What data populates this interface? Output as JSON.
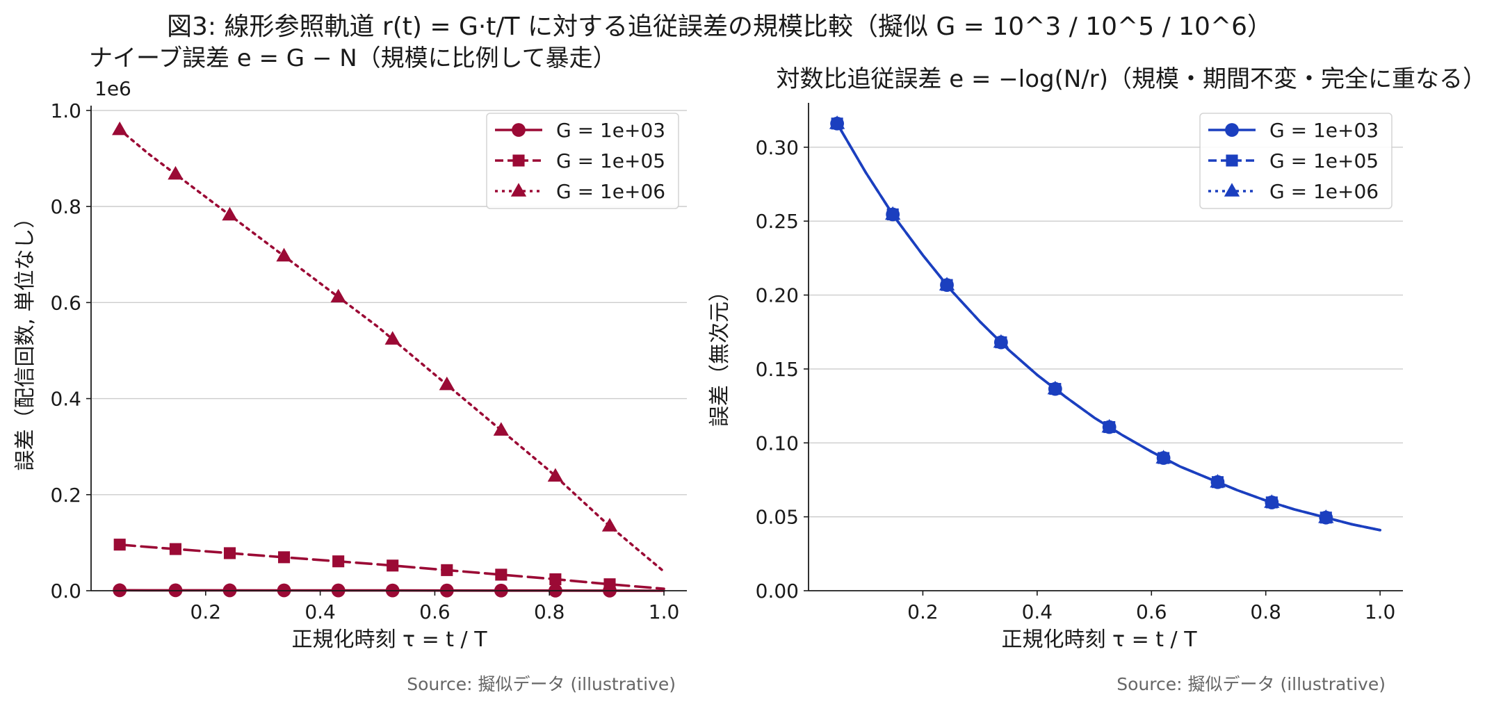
{
  "figure": {
    "suptitle": "図3: 線形参照軌道 r(t) = G·t/T に対する追従誤差の規模比較（擬似 G = 10^3 / 10^5 / 10^6）"
  },
  "chart_data": [
    {
      "type": "line",
      "title": "ナイーブ誤差 e = G − N（規模に比例して暴走）",
      "xlabel": "正規化時刻 τ = t / T",
      "ylabel": "誤差（配信回数, 単位なし）",
      "y_offset_label": "1e6",
      "source": "Source: 擬似データ (illustrative)",
      "color": "#9b0a35",
      "xlim": [
        0,
        1.04
      ],
      "ylim": [
        0,
        1010000
      ],
      "xticks": [
        0.2,
        0.4,
        0.6,
        0.8,
        1.0
      ],
      "xtick_labels": [
        "0.2",
        "0.4",
        "0.6",
        "0.8",
        "1.0"
      ],
      "yticks": [
        0,
        200000,
        400000,
        600000,
        800000,
        1000000
      ],
      "ytick_labels": [
        "0.0",
        "0.2",
        "0.4",
        "0.6",
        "0.8",
        "1.0"
      ],
      "grid": "y",
      "legend_position": "top-right",
      "markers_x": [
        0.05,
        0.1474,
        0.2421,
        0.3368,
        0.4316,
        0.5263,
        0.6211,
        0.7158,
        0.8105,
        0.9053
      ],
      "series": [
        {
          "name": "G = 1e+03",
          "linestyle": "solid",
          "marker": "circle",
          "G": 1000,
          "x": [
            0.05,
            0.1,
            0.2,
            0.3,
            0.4,
            0.5,
            0.6,
            0.7,
            0.8,
            0.9,
            1.0
          ],
          "y": [
            960,
            910,
            820,
            730,
            640,
            550,
            450,
            350,
            250,
            140,
            40
          ]
        },
        {
          "name": "G = 1e+05",
          "linestyle": "dashed",
          "marker": "square",
          "G": 100000,
          "x": [
            0.05,
            0.1,
            0.2,
            0.3,
            0.4,
            0.5,
            0.6,
            0.7,
            0.8,
            0.9,
            1.0
          ],
          "y": [
            96000,
            91000,
            82000,
            73000,
            64000,
            55000,
            45000,
            35000,
            25000,
            14000,
            4000
          ]
        },
        {
          "name": "G = 1e+06",
          "linestyle": "dotted",
          "marker": "triangle",
          "G": 1000000,
          "x": [
            0.05,
            0.1,
            0.2,
            0.3,
            0.4,
            0.5,
            0.6,
            0.7,
            0.8,
            0.9,
            1.0
          ],
          "y": [
            960000,
            910000,
            820000,
            730000,
            640000,
            550000,
            450000,
            350000,
            250000,
            140000,
            40000
          ]
        }
      ]
    },
    {
      "type": "line",
      "title": "対数比追従誤差 e = −log(N/r)（規模・期間不変・完全に重なる）",
      "xlabel": "正規化時刻 τ = t / T",
      "ylabel": "誤差（無次元）",
      "source": "Source: 擬似データ (illustrative)",
      "color": "#1b3fbf",
      "xlim": [
        0,
        1.04
      ],
      "ylim": [
        0,
        0.33
      ],
      "xticks": [
        0.2,
        0.4,
        0.6,
        0.8,
        1.0
      ],
      "xtick_labels": [
        "0.2",
        "0.4",
        "0.6",
        "0.8",
        "1.0"
      ],
      "yticks": [
        0,
        0.05,
        0.1,
        0.15,
        0.2,
        0.25,
        0.3
      ],
      "ytick_labels": [
        "0.00",
        "0.05",
        "0.10",
        "0.15",
        "0.20",
        "0.25",
        "0.30"
      ],
      "grid": "y",
      "legend_position": "top-right",
      "markers_x": [
        0.05,
        0.1474,
        0.2421,
        0.3368,
        0.4316,
        0.5263,
        0.6211,
        0.7158,
        0.8105,
        0.9053
      ],
      "series": [
        {
          "name": "G = 1e+03",
          "linestyle": "solid",
          "marker": "circle",
          "x": [
            0.05,
            0.1,
            0.15,
            0.2,
            0.25,
            0.3,
            0.35,
            0.4,
            0.45,
            0.5,
            0.55,
            0.6,
            0.65,
            0.7,
            0.75,
            0.8,
            0.85,
            0.9,
            0.95,
            1.0
          ],
          "y": [
            0.316,
            0.283,
            0.253,
            0.227,
            0.203,
            0.182,
            0.163,
            0.146,
            0.131,
            0.117,
            0.105,
            0.094,
            0.084,
            0.076,
            0.068,
            0.061,
            0.055,
            0.05,
            0.045,
            0.041
          ]
        },
        {
          "name": "G = 1e+05",
          "linestyle": "dashed",
          "marker": "square",
          "x": [
            0.05,
            0.1,
            0.15,
            0.2,
            0.25,
            0.3,
            0.35,
            0.4,
            0.45,
            0.5,
            0.55,
            0.6,
            0.65,
            0.7,
            0.75,
            0.8,
            0.85,
            0.9,
            0.95,
            1.0
          ],
          "y": [
            0.316,
            0.283,
            0.253,
            0.227,
            0.203,
            0.182,
            0.163,
            0.146,
            0.131,
            0.117,
            0.105,
            0.094,
            0.084,
            0.076,
            0.068,
            0.061,
            0.055,
            0.05,
            0.045,
            0.041
          ]
        },
        {
          "name": "G = 1e+06",
          "linestyle": "dotted",
          "marker": "triangle",
          "x": [
            0.05,
            0.1,
            0.15,
            0.2,
            0.25,
            0.3,
            0.35,
            0.4,
            0.45,
            0.5,
            0.55,
            0.6,
            0.65,
            0.7,
            0.75,
            0.8,
            0.85,
            0.9,
            0.95,
            1.0
          ],
          "y": [
            0.316,
            0.283,
            0.253,
            0.227,
            0.203,
            0.182,
            0.163,
            0.146,
            0.131,
            0.117,
            0.105,
            0.094,
            0.084,
            0.076,
            0.068,
            0.061,
            0.055,
            0.05,
            0.045,
            0.041
          ]
        }
      ]
    }
  ]
}
